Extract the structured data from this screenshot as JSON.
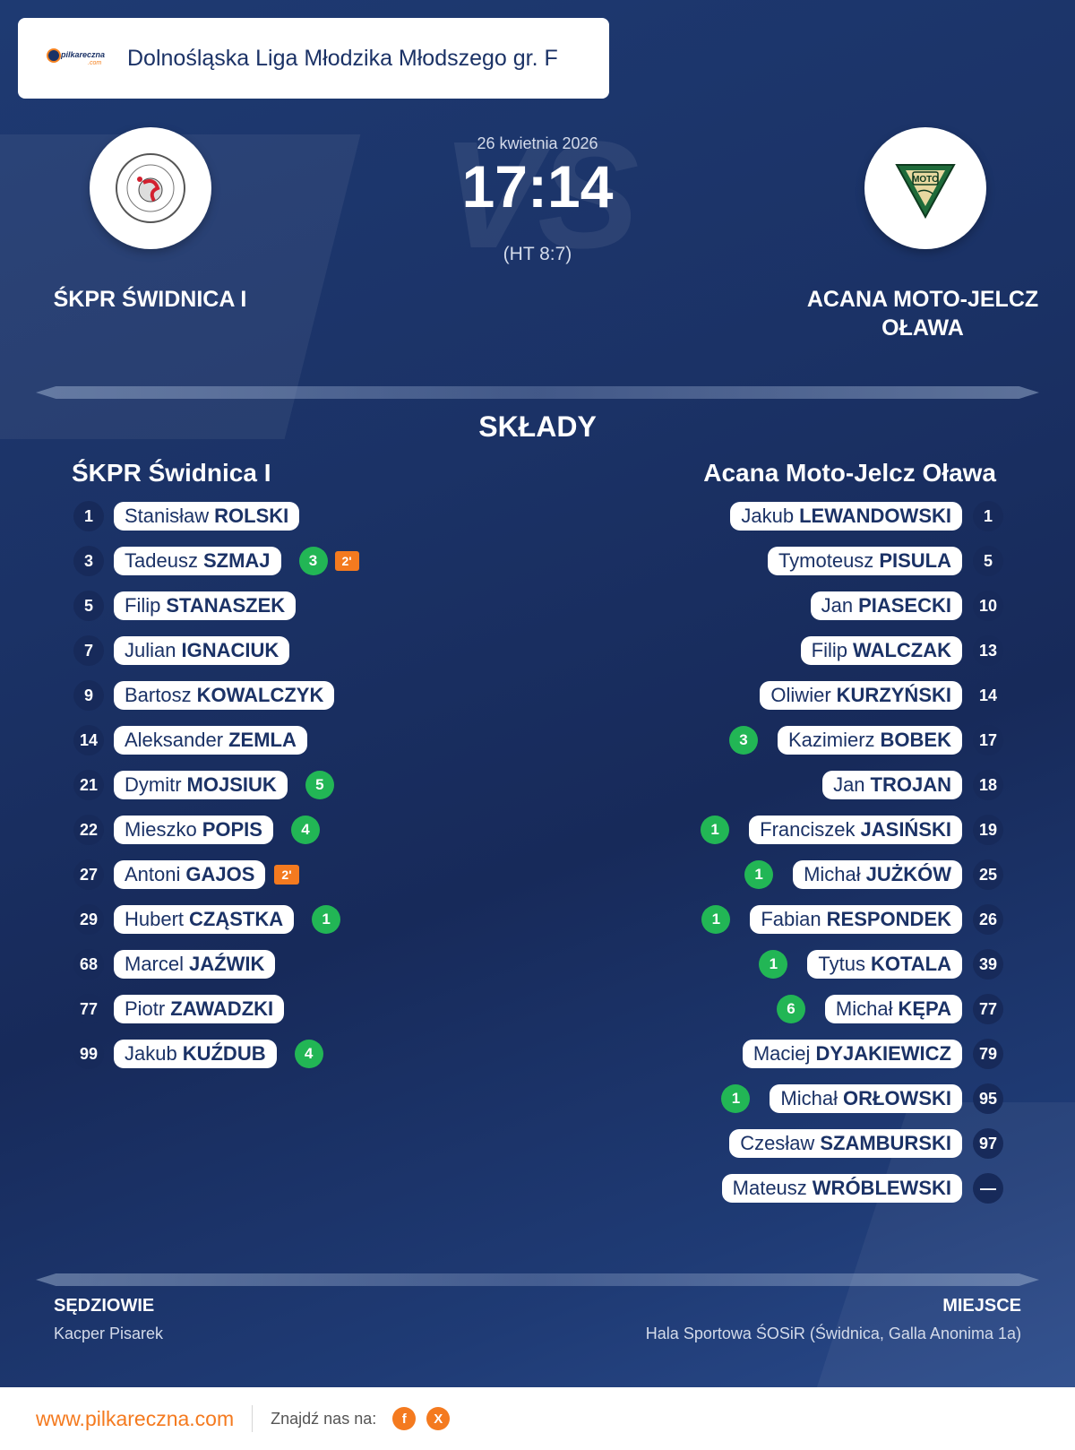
{
  "header": {
    "brand": {
      "logo_text": "pilkareczna",
      "logo_suffix": ".com"
    },
    "league": "Dolnośląska Liga Młodzika Młodszego gr. F"
  },
  "match": {
    "date": "26 kwietnia 2026",
    "vs": "VS",
    "score": "17:14",
    "half_time": "(HT 8:7)",
    "home_team": "ŚKPR ŚWIDNICA I",
    "away_team_line1": "ACANA MOTO-JELCZ",
    "away_team_line2": "OŁAWA",
    "away_logo_text": "MOTO"
  },
  "lineups": {
    "title": "SKŁADY",
    "home_title": "ŚKPR Świdnica I",
    "away_title": "Acana Moto-Jelcz Oława",
    "home": [
      {
        "number": "1",
        "first": "Stanisław",
        "last": "ROLSKI",
        "goals": "",
        "penalty": ""
      },
      {
        "number": "3",
        "first": "Tadeusz",
        "last": "SZMAJ",
        "goals": "3",
        "penalty": "2'"
      },
      {
        "number": "5",
        "first": "Filip",
        "last": "STANASZEK",
        "goals": "",
        "penalty": ""
      },
      {
        "number": "7",
        "first": "Julian",
        "last": "IGNACIUK",
        "goals": "",
        "penalty": ""
      },
      {
        "number": "9",
        "first": "Bartosz",
        "last": "KOWALCZYK",
        "goals": "",
        "penalty": ""
      },
      {
        "number": "14",
        "first": "Aleksander",
        "last": "ZEMLA",
        "goals": "",
        "penalty": ""
      },
      {
        "number": "21",
        "first": "Dymitr",
        "last": "MOJSIUK",
        "goals": "5",
        "penalty": ""
      },
      {
        "number": "22",
        "first": "Mieszko",
        "last": "POPIS",
        "goals": "4",
        "penalty": ""
      },
      {
        "number": "27",
        "first": "Antoni",
        "last": "GAJOS",
        "goals": "",
        "penalty": "2'"
      },
      {
        "number": "29",
        "first": "Hubert",
        "last": "CZĄSTKA",
        "goals": "1",
        "penalty": ""
      },
      {
        "number": "68",
        "first": "Marcel",
        "last": "JAŹWIK",
        "goals": "",
        "penalty": ""
      },
      {
        "number": "77",
        "first": "Piotr",
        "last": "ZAWADZKI",
        "goals": "",
        "penalty": ""
      },
      {
        "number": "99",
        "first": "Jakub",
        "last": "KUŹDUB",
        "goals": "4",
        "penalty": ""
      }
    ],
    "away": [
      {
        "number": "1",
        "first": "Jakub",
        "last": "LEWANDOWSKI",
        "goals": ""
      },
      {
        "number": "5",
        "first": "Tymoteusz",
        "last": "PISULA",
        "goals": ""
      },
      {
        "number": "10",
        "first": "Jan",
        "last": "PIASECKI",
        "goals": ""
      },
      {
        "number": "13",
        "first": "Filip",
        "last": "WALCZAK",
        "goals": ""
      },
      {
        "number": "14",
        "first": "Oliwier",
        "last": "KURZYŃSKI",
        "goals": ""
      },
      {
        "number": "17",
        "first": "Kazimierz",
        "last": "BOBEK",
        "goals": "3"
      },
      {
        "number": "18",
        "first": "Jan",
        "last": "TROJAN",
        "goals": ""
      },
      {
        "number": "19",
        "first": "Franciszek",
        "last": "JASIŃSKI",
        "goals": "1"
      },
      {
        "number": "25",
        "first": "Michał",
        "last": "JUŻKÓW",
        "goals": "1"
      },
      {
        "number": "26",
        "first": "Fabian",
        "last": "RESPONDEK",
        "goals": "1"
      },
      {
        "number": "39",
        "first": "Tytus",
        "last": "KOTALA",
        "goals": "1"
      },
      {
        "number": "77",
        "first": "Michał",
        "last": "KĘPA",
        "goals": "6"
      },
      {
        "number": "79",
        "first": "Maciej",
        "last": "DYJAKIEWICZ",
        "goals": ""
      },
      {
        "number": "95",
        "first": "Michał",
        "last": "ORŁOWSKI",
        "goals": "1"
      },
      {
        "number": "97",
        "first": "Czesław",
        "last": "SZAMBURSKI",
        "goals": ""
      },
      {
        "number": "—",
        "first": "Mateusz",
        "last": "WRÓBLEWSKI",
        "goals": ""
      }
    ]
  },
  "footer": {
    "referees_label": "SĘDZIOWIE",
    "referees": "Kacper Pisarek",
    "venue_label": "MIEJSCE",
    "venue": "Hala Sportowa ŚOSiR (Świdnica, Galla Anonima 1a)"
  },
  "bottom": {
    "site": "www.pilkareczna.com",
    "find_us": "Znajdź nas na:",
    "facebook": "f",
    "x": "X"
  },
  "colors": {
    "background": "#1b3266",
    "goal_badge": "#22b655",
    "penalty_badge": "#f47a1f",
    "accent": "#f47a1f"
  }
}
